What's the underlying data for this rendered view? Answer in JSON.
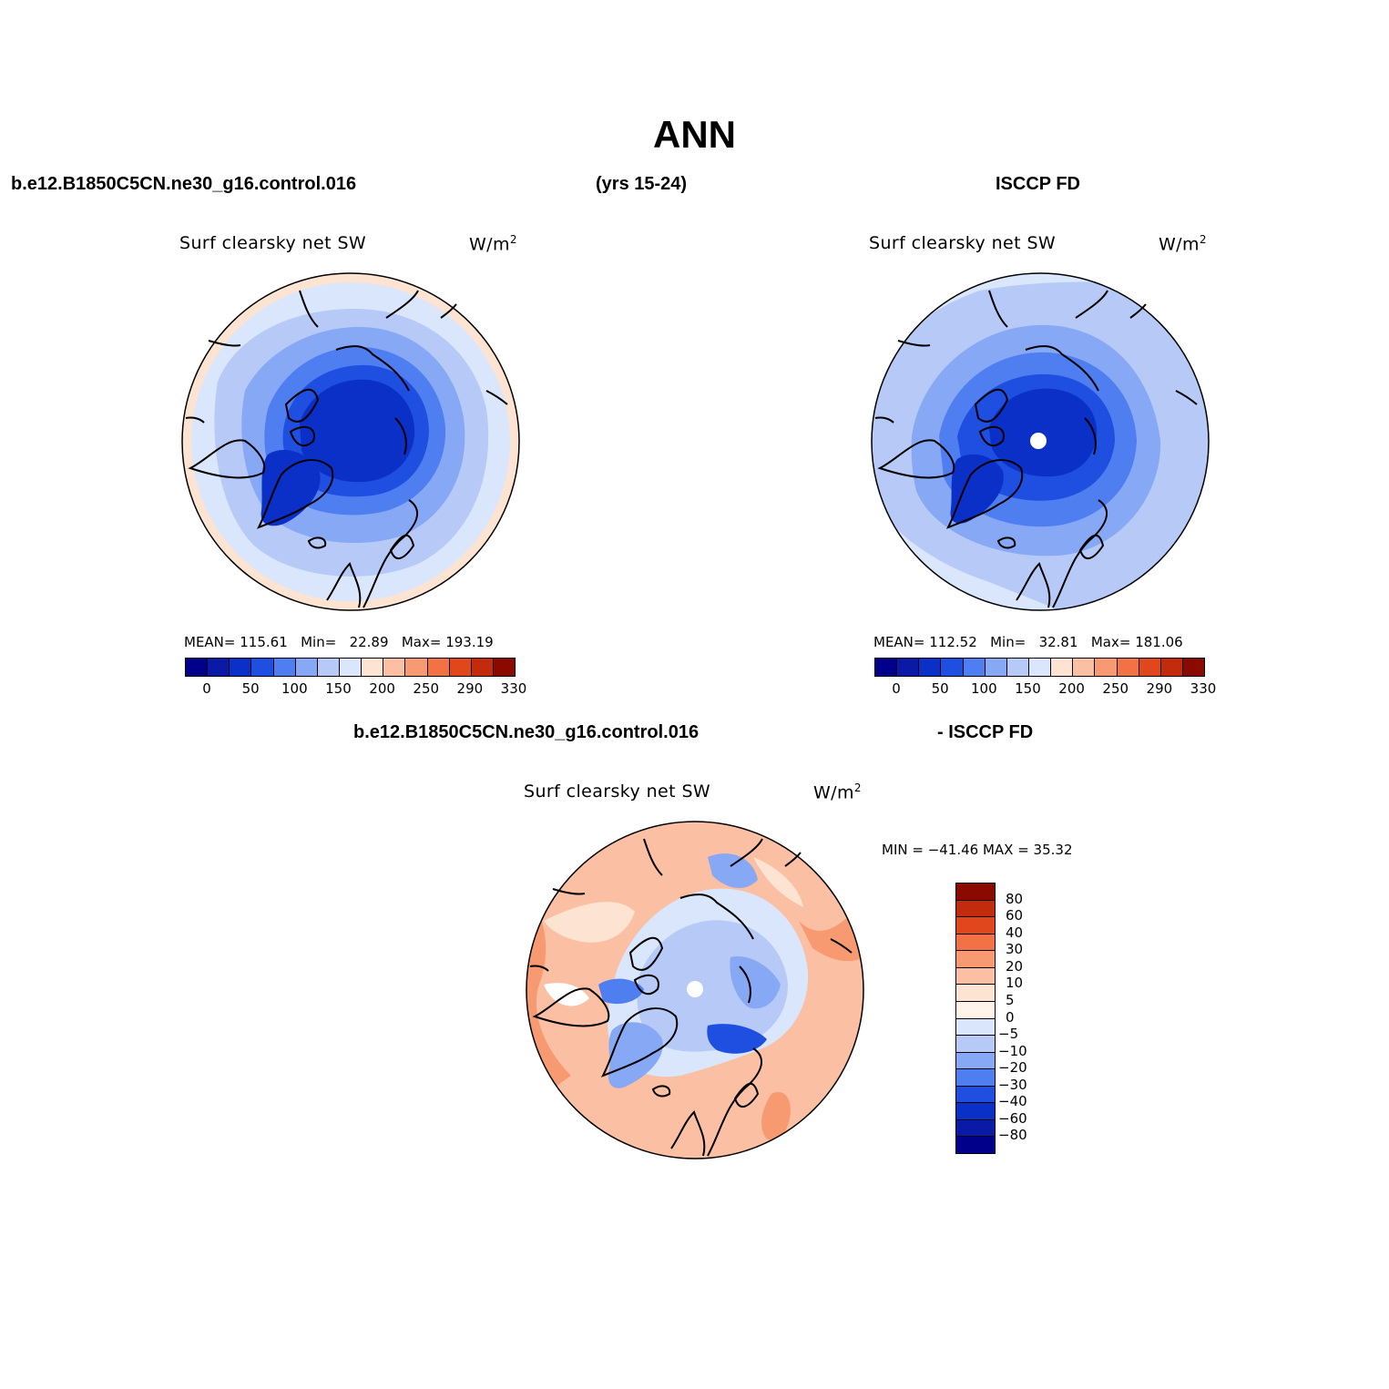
{
  "title": "ANN",
  "header": {
    "case_name": "b.e12.B1850C5CN.ne30_g16.control.016",
    "years": "(yrs 15-24)",
    "obs_name": "ISCCP FD"
  },
  "diff_header": {
    "case_name": "b.e12.B1850C5CN.ne30_g16.control.016",
    "obs_name": "- ISCCP FD"
  },
  "panels": [
    {
      "variable": "Surf  clearsky  net  SW",
      "units": "W/m",
      "units_sup": "2",
      "mean_label": "MEAN=",
      "mean": "115.61",
      "min_label": "Min=",
      "min": "22.89",
      "max_label": "Max=",
      "max": "193.19"
    },
    {
      "variable": "Surf  clearsky  net  SW",
      "units": "W/m",
      "units_sup": "2",
      "mean_label": "MEAN=",
      "mean": "112.52",
      "min_label": "Min=",
      "min": "32.81",
      "max_label": "Max=",
      "max": "181.06"
    }
  ],
  "diff_panel": {
    "variable": "Surf  clearsky  net  SW",
    "units": "W/m",
    "units_sup": "2",
    "minmax": "MIN = −41.46  MAX =   35.32"
  },
  "colorbar": {
    "colors": [
      "#00008b",
      "#0a1aa6",
      "#0a30c8",
      "#1e4fe0",
      "#4f7ef0",
      "#86a8f5",
      "#b6c9f7",
      "#dae6fb",
      "#fde3d2",
      "#fbbfa3",
      "#f79a72",
      "#f27245",
      "#e0471c",
      "#c22b0c",
      "#8b0a00"
    ],
    "labels": [
      "0",
      "50",
      "100",
      "150",
      "200",
      "250",
      "290",
      "330"
    ]
  },
  "diff_colorbar": {
    "colors": [
      "#8b0a00",
      "#c22b0c",
      "#e0471c",
      "#f27245",
      "#f79a72",
      "#fbbfa3",
      "#fde3d2",
      "#fff3ea",
      "#dae6fb",
      "#b6c9f7",
      "#86a8f5",
      "#4f7ef0",
      "#1e4fe0",
      "#0a30c8",
      "#0a1aa6",
      "#00008b"
    ],
    "labels": [
      "80",
      "60",
      "40",
      "30",
      "20",
      "10",
      "5",
      "0",
      "−5",
      "−10",
      "−20",
      "−30",
      "−40",
      "−60",
      "−80"
    ]
  }
}
